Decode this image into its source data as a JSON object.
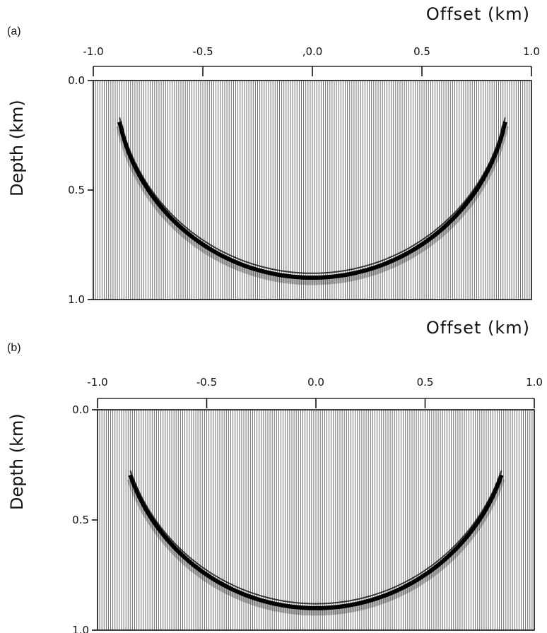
{
  "chart_data": [
    {
      "type": "seismic-wiggle",
      "panel_label": "(a)",
      "xlabel": "Offset (km)",
      "ylabel": "Depth (km)",
      "x_ticks": [
        -1.0,
        -0.5,
        0.0,
        0.5,
        1.0
      ],
      "x_tick_labels": [
        "-1.0",
        "-0.5",
        ",0.0",
        "0.5",
        "1.0"
      ],
      "y_ticks": [
        0.0,
        0.5,
        1.0
      ],
      "y_tick_labels": [
        "0.0",
        "0.5",
        "1.0"
      ],
      "xlim": [
        -1.0,
        1.0
      ],
      "ylim": [
        0.0,
        1.0
      ],
      "event": {
        "center_x": 0.0,
        "apex_depth": 0.9,
        "radius": 0.9,
        "x_extent": [
          -0.88,
          0.88
        ]
      },
      "trace_count": 200
    },
    {
      "type": "seismic-wiggle",
      "panel_label": "(b)",
      "xlabel": "Offset (km)",
      "ylabel": "Depth (km)",
      "x_ticks": [
        -1.0,
        -0.5,
        0.0,
        0.5,
        1.0
      ],
      "x_tick_labels": [
        "-1.0",
        "-0.5",
        "0.0",
        "0.5",
        "1.0"
      ],
      "y_ticks": [
        0.0,
        0.5,
        1.0
      ],
      "y_tick_labels": [
        "0.0",
        "0.5",
        "1.0"
      ],
      "xlim": [
        -1.0,
        1.0
      ],
      "ylim": [
        0.0,
        1.0
      ],
      "event": {
        "center_x": 0.0,
        "apex_depth": 0.9,
        "radius": 0.9,
        "x_extent": [
          -0.85,
          0.85
        ]
      },
      "trace_count": 200
    }
  ]
}
